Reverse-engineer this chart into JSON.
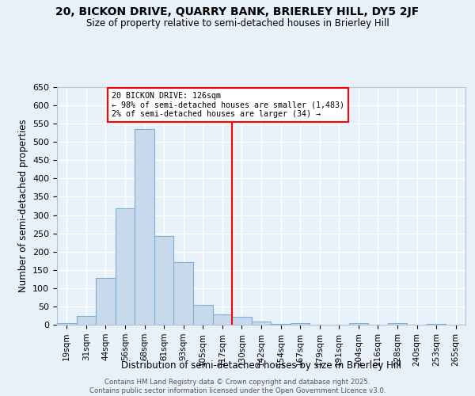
{
  "title1": "20, BICKON DRIVE, QUARRY BANK, BRIERLEY HILL, DY5 2JF",
  "title2": "Size of property relative to semi-detached houses in Brierley Hill",
  "xlabel": "Distribution of semi-detached houses by size in Brierley Hill",
  "ylabel": "Number of semi-detached properties",
  "categories": [
    "19sqm",
    "31sqm",
    "44sqm",
    "56sqm",
    "68sqm",
    "81sqm",
    "93sqm",
    "105sqm",
    "117sqm",
    "130sqm",
    "142sqm",
    "154sqm",
    "167sqm",
    "179sqm",
    "191sqm",
    "204sqm",
    "216sqm",
    "228sqm",
    "240sqm",
    "253sqm",
    "265sqm"
  ],
  "values": [
    5,
    23,
    128,
    318,
    535,
    243,
    172,
    55,
    29,
    22,
    8,
    2,
    5,
    0,
    0,
    4,
    0,
    4,
    0,
    2,
    0
  ],
  "bar_color": "#c9d9ec",
  "bar_edge_color": "#7bafd4",
  "background_color": "#e8f0f8",
  "grid_color": "#ffffff",
  "red_line_index": 9,
  "annotation_title": "20 BICKON DRIVE: 126sqm",
  "annotation_line1": "← 98% of semi-detached houses are smaller (1,483)",
  "annotation_line2": "2% of semi-detached houses are larger (34) →",
  "footer1": "Contains HM Land Registry data © Crown copyright and database right 2025.",
  "footer2": "Contains public sector information licensed under the Open Government Licence v3.0.",
  "ylim": [
    0,
    650
  ],
  "yticks": [
    0,
    50,
    100,
    150,
    200,
    250,
    300,
    350,
    400,
    450,
    500,
    550,
    600,
    650
  ]
}
